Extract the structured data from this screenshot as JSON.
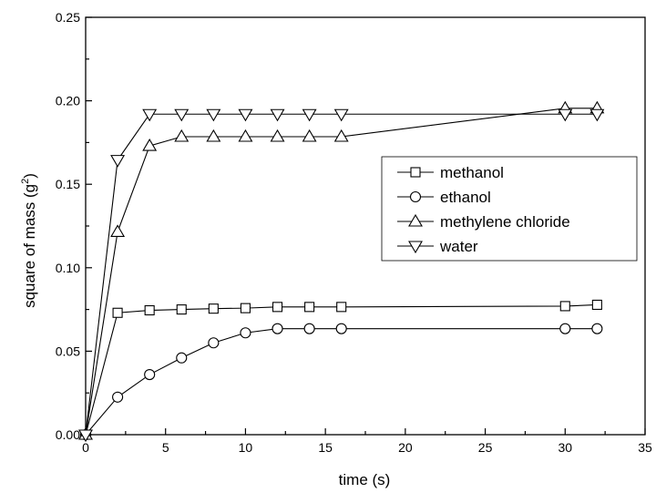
{
  "chart_data": {
    "type": "line",
    "title": "",
    "xlabel": "time (s)",
    "ylabel": "square of mass (g",
    "ylabel_sup": "2",
    "ylabel_tail": ")",
    "xlim": [
      0,
      35
    ],
    "ylim": [
      0.0,
      0.25
    ],
    "xticks": [
      0,
      5,
      10,
      15,
      20,
      25,
      30,
      35
    ],
    "xtick_labels": [
      "0",
      "5",
      "10",
      "15",
      "20",
      "25",
      "30",
      "35"
    ],
    "yticks": [
      0.0,
      0.05,
      0.1,
      0.15,
      0.2,
      0.25
    ],
    "ytick_labels": [
      "0.00",
      "0.05",
      "0.10",
      "0.15",
      "0.20",
      "0.25"
    ],
    "grid": false,
    "legend_position": "right-middle",
    "series": [
      {
        "name": "methanol",
        "marker": "square",
        "x": [
          0,
          2,
          4,
          6,
          8,
          10,
          12,
          14,
          16,
          30,
          32
        ],
        "y": [
          0.0,
          0.073,
          0.0745,
          0.075,
          0.0755,
          0.0758,
          0.0765,
          0.0765,
          0.0765,
          0.077,
          0.0778
        ]
      },
      {
        "name": "ethanol",
        "marker": "circle",
        "x": [
          0,
          2,
          4,
          6,
          8,
          10,
          12,
          14,
          16,
          30,
          32
        ],
        "y": [
          0.0,
          0.0225,
          0.036,
          0.046,
          0.055,
          0.061,
          0.0635,
          0.0635,
          0.0635,
          0.0635,
          0.0635
        ]
      },
      {
        "name": "methylene chloride",
        "marker": "triangle-up",
        "x": [
          0,
          2,
          4,
          6,
          8,
          10,
          12,
          14,
          16,
          30,
          32
        ],
        "y": [
          0.0,
          0.1215,
          0.173,
          0.1785,
          0.1785,
          0.1785,
          0.1785,
          0.1785,
          0.1785,
          0.1955,
          0.1955
        ]
      },
      {
        "name": "water",
        "marker": "triangle-down",
        "x": [
          0,
          2,
          4,
          6,
          8,
          10,
          12,
          14,
          16,
          30,
          32
        ],
        "y": [
          0.0,
          0.1645,
          0.192,
          0.192,
          0.192,
          0.192,
          0.192,
          0.192,
          0.192,
          0.192,
          0.192
        ]
      }
    ]
  }
}
